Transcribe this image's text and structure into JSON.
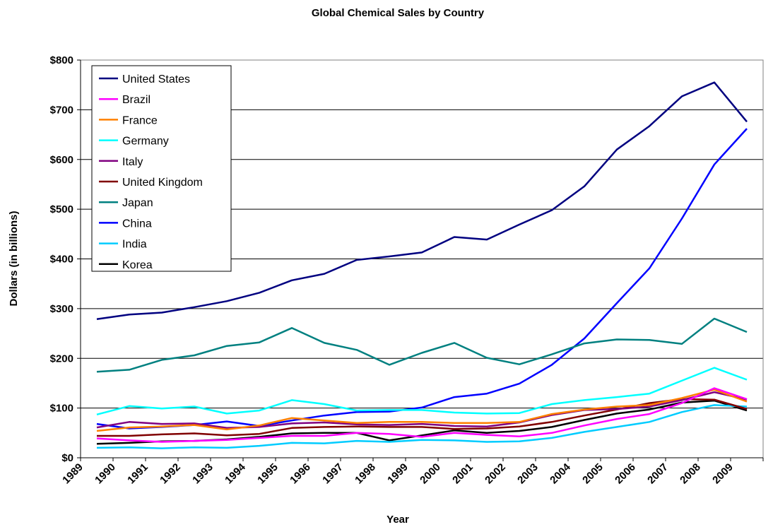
{
  "chart_data": {
    "type": "line",
    "title": "Global Chemical Sales by Country",
    "xlabel": "Year",
    "ylabel": "Dollars (in billions)",
    "ylim": [
      0,
      800
    ],
    "y_ticks": [
      0,
      100,
      200,
      300,
      400,
      500,
      600,
      700,
      800
    ],
    "y_tick_labels": [
      "$0",
      "$100",
      "$200",
      "$300",
      "$400",
      "$500",
      "$600",
      "$700",
      "$800"
    ],
    "x_tick_labels": [
      "1989",
      "1990",
      "1991",
      "1992",
      "1993",
      "1994",
      "1995",
      "1996",
      "1997",
      "1998",
      "1999",
      "2000",
      "2001",
      "2002",
      "2003",
      "2004",
      "2005",
      "2006",
      "2007",
      "2008",
      "2009"
    ],
    "grid": "horizontal",
    "legend_position": "top-left",
    "series": [
      {
        "name": "United States",
        "color": "#000080",
        "values": [
          279,
          288,
          292,
          303,
          315,
          332,
          357,
          370,
          398,
          405,
          413,
          444,
          439,
          469,
          498,
          546,
          620,
          667,
          727,
          755,
          676
        ]
      },
      {
        "name": "Brazil",
        "color": "#FF00FF",
        "values": [
          39,
          35,
          32,
          34,
          36,
          40,
          44,
          44,
          50,
          48,
          42,
          50,
          46,
          43,
          50,
          65,
          78,
          88,
          110,
          140,
          118
        ]
      },
      {
        "name": "France",
        "color": "#FF8000",
        "values": [
          54,
          61,
          63,
          66,
          57,
          65,
          80,
          75,
          70,
          72,
          72,
          70,
          70,
          72,
          88,
          97,
          103,
          106,
          120,
          137,
          113
        ]
      },
      {
        "name": "Germany",
        "color": "#00FFFF",
        "values": [
          87,
          104,
          99,
          103,
          89,
          95,
          116,
          108,
          95,
          96,
          96,
          91,
          89,
          90,
          108,
          116,
          122,
          129,
          155,
          181,
          157
        ]
      },
      {
        "name": "Italy",
        "color": "#800080",
        "values": [
          61,
          72,
          68,
          69,
          60,
          62,
          69,
          71,
          67,
          66,
          68,
          64,
          63,
          71,
          86,
          96,
          98,
          103,
          116,
          132,
          117
        ]
      },
      {
        "name": "United Kingdom",
        "color": "#800000",
        "values": [
          44,
          44,
          47,
          49,
          45,
          48,
          60,
          62,
          63,
          62,
          62,
          58,
          59,
          63,
          72,
          85,
          97,
          110,
          118,
          117,
          98
        ]
      },
      {
        "name": "Japan",
        "color": "#008080",
        "values": [
          173,
          177,
          197,
          206,
          225,
          232,
          261,
          231,
          217,
          187,
          211,
          231,
          201,
          188,
          208,
          230,
          238,
          237,
          229,
          280,
          253
        ]
      },
      {
        "name": "China",
        "color": "#0000FF",
        "values": [
          68,
          59,
          62,
          66,
          73,
          64,
          75,
          85,
          92,
          93,
          101,
          122,
          129,
          149,
          187,
          240,
          311,
          381,
          481,
          590,
          662
        ]
      },
      {
        "name": "India",
        "color": "#00CCFF",
        "values": [
          20,
          21,
          19,
          21,
          20,
          24,
          30,
          29,
          34,
          32,
          36,
          35,
          32,
          33,
          40,
          52,
          62,
          72,
          92,
          106,
          103
        ]
      },
      {
        "name": "Korea",
        "color": "#000000",
        "values": [
          28,
          30,
          33,
          34,
          37,
          42,
          49,
          50,
          50,
          35,
          45,
          55,
          50,
          54,
          62,
          76,
          89,
          97,
          111,
          115,
          95
        ]
      }
    ]
  }
}
